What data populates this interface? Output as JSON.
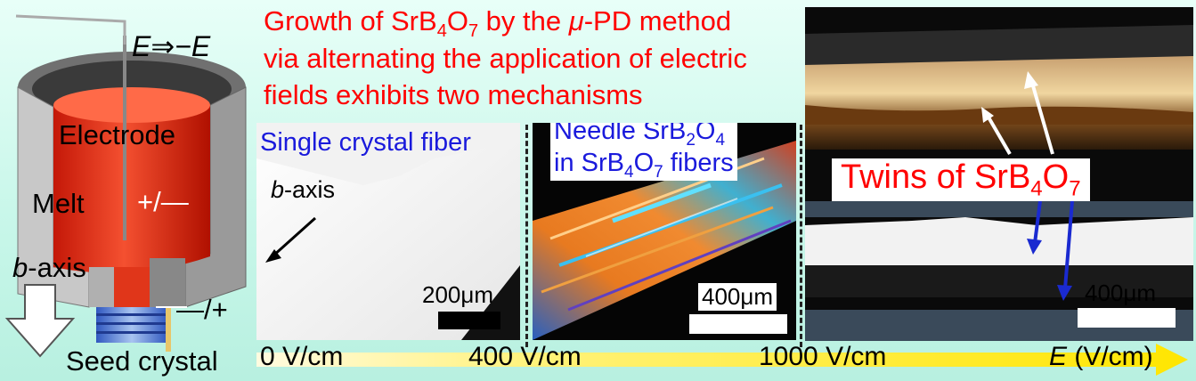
{
  "title": {
    "line1_prefix": "Growth of SrB",
    "line1_sub1": "4",
    "line1_mid": "O",
    "line1_sub2": "7",
    "line1_mid2": " by the ",
    "line1_mu": "μ",
    "line1_suffix": "-PD method",
    "line2": "via alternating the application of electric",
    "line3": "fields exhibits two mechanisms"
  },
  "apparatus": {
    "field_label_E": "E",
    "field_label_arrow": "⇒",
    "field_label_negE": "−E",
    "electrode": "Electrode",
    "melt": "Melt",
    "polarity_top": "+/—",
    "polarity_bottom": "—/+",
    "baxis_italic": "b",
    "baxis_rest": "-axis",
    "seed": "Seed crystal"
  },
  "panels": {
    "single": {
      "title": "Single crystal fiber",
      "axis_italic": "b",
      "axis_rest": "-axis",
      "scale": "200μm"
    },
    "needle": {
      "title_l1_a": "Needle SrB",
      "title_l1_s1": "2",
      "title_l1_b": "O",
      "title_l1_s2": "4",
      "title_l2_a": "in SrB",
      "title_l2_s1": "4",
      "title_l2_b": "O",
      "title_l2_s2": "7",
      "title_l2_c": " fibers",
      "scale": "400μm"
    },
    "twins": {
      "label_a": "Twins of SrB",
      "label_s1": "4",
      "label_b": "O",
      "label_s2": "7",
      "scale": "400μm"
    }
  },
  "axis": {
    "t0": "0 V/cm",
    "t400": "400 V/cm",
    "t1000": "1000 V/cm",
    "unit_italic": "E",
    "unit_rest": " (V/cm)"
  },
  "colors": {
    "title": "#ff0000",
    "panel_titles": "#1a1adc",
    "melt": "#e8381c",
    "arrow_yellow": "#ffe600"
  }
}
